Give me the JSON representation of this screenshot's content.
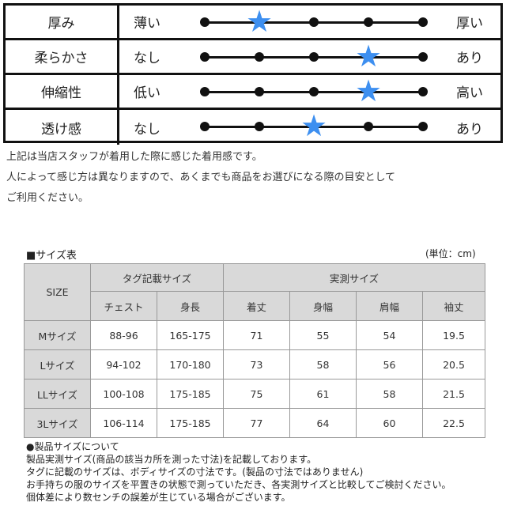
{
  "feel_table": {
    "scale_points": 5,
    "star_color": "#3d8ff0",
    "rows": [
      {
        "name": "厚み",
        "low": "薄い",
        "high": "厚い",
        "level": 2
      },
      {
        "name": "柔らかさ",
        "low": "なし",
        "high": "あり",
        "level": 4
      },
      {
        "name": "伸縮性",
        "low": "低い",
        "high": "高い",
        "level": 4
      },
      {
        "name": "透け感",
        "low": "なし",
        "high": "あり",
        "level": 3
      }
    ]
  },
  "notes": [
    "上記は当店スタッフが着用した際に感じた着用感です。",
    "人によって感じ方は異なりますので、あくまでも商品をお選びになる際の目安として",
    "ご利用ください。"
  ],
  "size_table": {
    "title": "■サイズ表",
    "unit": "(単位：cm)",
    "size_header": "SIZE",
    "group_tag": "タグ記載サイズ",
    "group_actual": "実測サイズ",
    "columns": [
      "チェスト",
      "身長",
      "着丈",
      "身幅",
      "肩幅",
      "袖丈"
    ],
    "rows": [
      {
        "size": "Mサイズ",
        "values": [
          "88-96",
          "165-175",
          "71",
          "55",
          "54",
          "19.5"
        ]
      },
      {
        "size": "Lサイズ",
        "values": [
          "94-102",
          "170-180",
          "73",
          "58",
          "56",
          "20.5"
        ]
      },
      {
        "size": "LLサイズ",
        "values": [
          "100-108",
          "175-185",
          "75",
          "61",
          "58",
          "21.5"
        ]
      },
      {
        "size": "3Lサイズ",
        "values": [
          "106-114",
          "175-185",
          "77",
          "64",
          "60",
          "22.5"
        ]
      }
    ]
  },
  "bottom_notes": [
    "●製品サイズについて",
    "製品実測サイズ(商品の該当カ所を測った寸法)を記載しております。",
    "タグに記載のサイズは、ボディサイズの寸法です。(製品の寸法ではありません)",
    "お手持ちの服のサイズを平置きの状態で測っていただき、各実測サイズと比較してご検討ください。",
    "個体差により数センチの誤差が生じている場合がございます。"
  ]
}
